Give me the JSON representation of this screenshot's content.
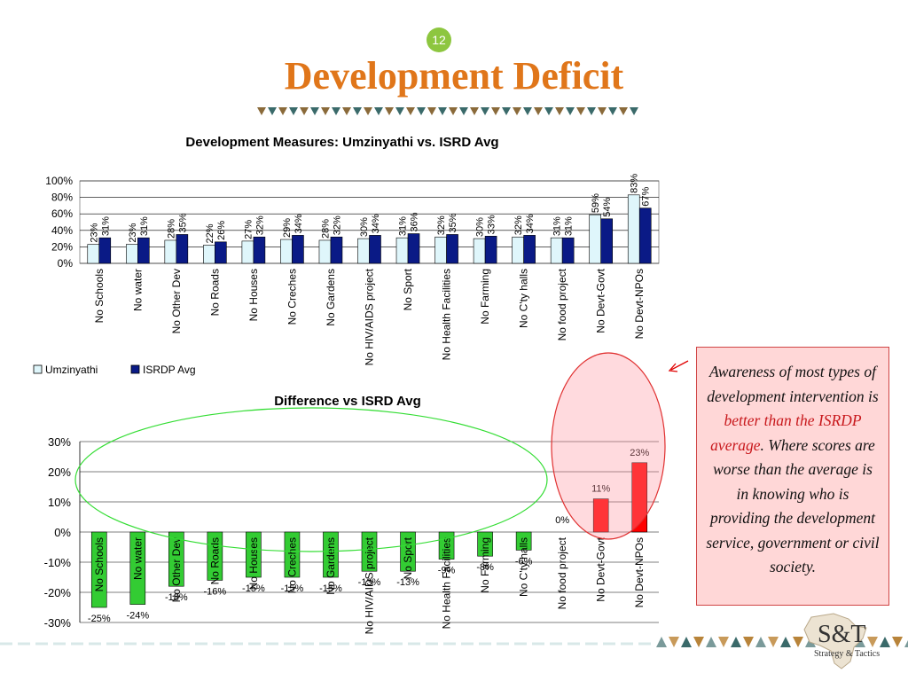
{
  "slide": {
    "number": "12",
    "title": "Development Deficit"
  },
  "callout": {
    "text_a": "Awareness of most types of development intervention is ",
    "highlight": "better than the ISRDP average",
    "text_b": ". Where scores are worse than the average is in knowing who is providing the development service, government or civil society."
  },
  "logo": {
    "main": "S&T",
    "sub": "Strategy & Tactics"
  },
  "colors": {
    "title": "#e0761a",
    "umzinyathi": "#dff6fb",
    "isrdp": "#0a1a86",
    "positive": "#ff0000",
    "negative": "#33cc33"
  },
  "chart_data": [
    {
      "type": "bar",
      "title": "Development Measures: Umzinyathi vs. ISRD Avg",
      "categories": [
        "No Schools",
        "No water",
        "No Other Dev",
        "No Roads",
        "No Houses",
        "No Creches",
        "No Gardens",
        "No HIV/AIDS project",
        "No Sport",
        "No Health Facilities",
        "No Farming",
        "No C'ty halls",
        "No food project",
        "No Devt-Govt",
        "No Devt-NPOs"
      ],
      "series": [
        {
          "name": "Umzinyathi",
          "values": [
            23,
            23,
            28,
            22,
            27,
            29,
            28,
            30,
            31,
            32,
            30,
            32,
            31,
            59,
            83
          ],
          "labels": [
            "23%",
            "23%",
            "28%",
            "22%",
            "27%",
            "29%",
            "28%",
            "30%",
            "31%",
            "32%",
            "30%",
            "32%",
            "31%",
            "59%",
            "83%"
          ]
        },
        {
          "name": "ISRDP Avg",
          "values": [
            31,
            31,
            35,
            26,
            32,
            34,
            32,
            34,
            36,
            35,
            33,
            34,
            31,
            54,
            67
          ],
          "labels": [
            "31%",
            "31%",
            "35%",
            "26%",
            "32%",
            "34%",
            "32%",
            "34%",
            "36%",
            "35%",
            "33%",
            "34%",
            "31%",
            "54%",
            "67%"
          ]
        }
      ],
      "ylim": [
        0,
        100
      ],
      "yticks": [
        "0%",
        "20%",
        "40%",
        "60%",
        "80%",
        "100%"
      ],
      "grid": true,
      "legend": "bottom-left"
    },
    {
      "type": "bar",
      "title": "Difference vs ISRD Avg",
      "categories": [
        "No Schools",
        "No water",
        "No Other Dev",
        "No Roads",
        "No Houses",
        "No Creches",
        "No Gardens",
        "No HIV/AIDS project",
        "No Sport",
        "No Health Facilities",
        "No Farming",
        "No C'ty halls",
        "No food project",
        "No Devt-Govt",
        "No Devt-NPOs"
      ],
      "values": [
        -25,
        -24,
        -18,
        -16,
        -15,
        -15,
        -15,
        -13,
        -13,
        -9,
        -8,
        -6,
        0,
        11,
        23
      ],
      "labels": [
        "-25%",
        "-24%",
        "-18%",
        "-16%",
        "-15%",
        "-15%",
        "-15%",
        "-13%",
        "-13%",
        "-9%",
        "-8%",
        "-6%",
        "0%",
        "11%",
        "23%"
      ],
      "ylim": [
        -30,
        30
      ],
      "yticks": [
        "-30%",
        "-20%",
        "-10%",
        "0%",
        "10%",
        "20%",
        "30%"
      ],
      "grid": true
    }
  ]
}
